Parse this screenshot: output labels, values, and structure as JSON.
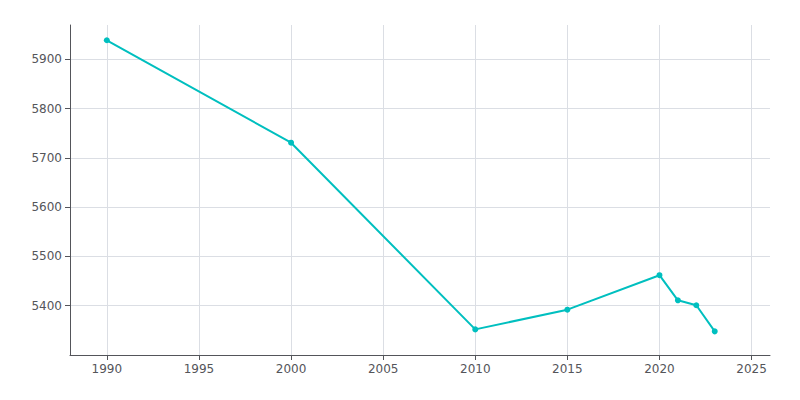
{
  "chart_data": {
    "type": "line",
    "x": [
      1990,
      2000,
      2010,
      2015,
      2020,
      2021,
      2022,
      2023
    ],
    "values": [
      5939,
      5731,
      5352,
      5392,
      5462,
      5411,
      5401,
      5348
    ],
    "color": "#00BFBF",
    "marker": "circle",
    "xlim": [
      1988,
      2026
    ],
    "xticks": [
      1990,
      1995,
      2000,
      2005,
      2010,
      2015,
      2020,
      2025
    ],
    "ylim": [
      5300,
      5970
    ],
    "yticks": [
      5400,
      5500,
      5600,
      5700,
      5800,
      5900
    ],
    "grid": true
  }
}
